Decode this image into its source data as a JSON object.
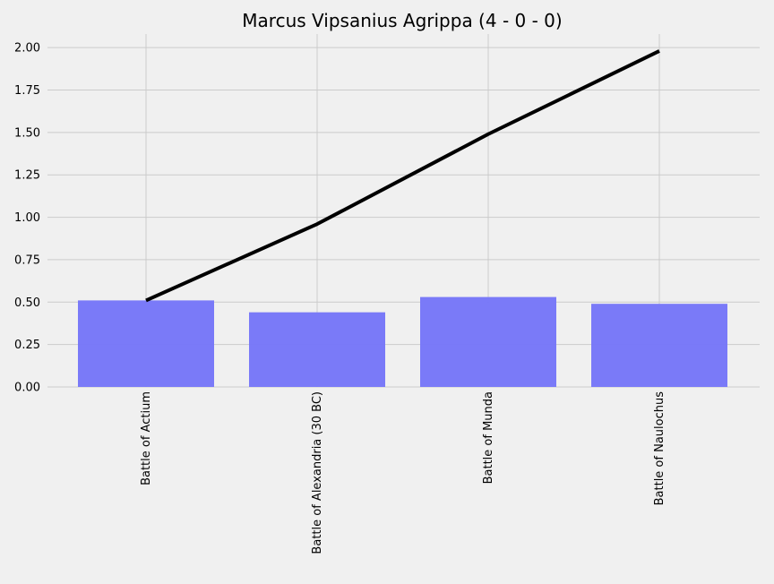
{
  "chart_data": {
    "type": "bar",
    "title": "Marcus Vipsanius Agrippa (4 - 0 - 0)",
    "xlabel": "",
    "ylabel": "",
    "categories": [
      "Battle of Actium",
      "Battle of Alexandria (30 BC)",
      "Battle of Munda",
      "Battle of Naulochus"
    ],
    "series": [
      {
        "type": "bar",
        "values": [
          0.51,
          0.44,
          0.53,
          0.49
        ],
        "color": "#7777f8"
      },
      {
        "type": "line",
        "values": [
          0.51,
          0.96,
          1.49,
          1.98
        ],
        "color": "#000000"
      }
    ],
    "ylim": [
      0,
      2.08
    ],
    "yticks": [
      "0.00",
      "0.25",
      "0.50",
      "0.75",
      "1.00",
      "1.25",
      "1.50",
      "1.75",
      "2.00"
    ],
    "grid": true,
    "legend": "none"
  }
}
